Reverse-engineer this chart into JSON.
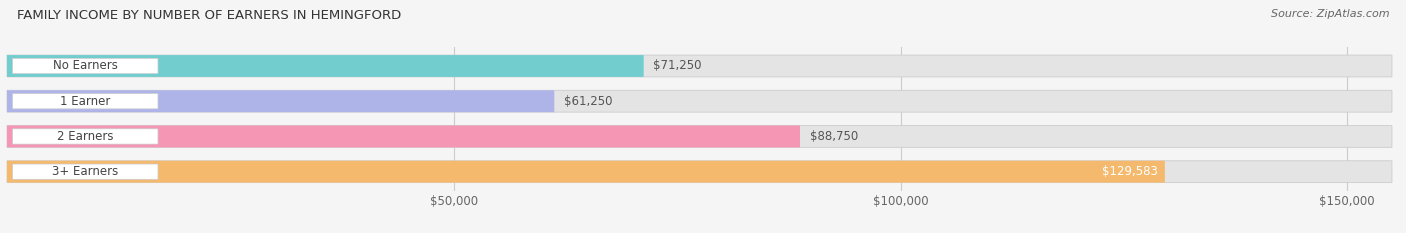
{
  "title": "FAMILY INCOME BY NUMBER OF EARNERS IN HEMINGFORD",
  "source": "Source: ZipAtlas.com",
  "categories": [
    "No Earners",
    "1 Earner",
    "2 Earners",
    "3+ Earners"
  ],
  "values": [
    71250,
    61250,
    88750,
    129583
  ],
  "bar_colors": [
    "#72cece",
    "#aeb4e8",
    "#f496b4",
    "#f5b96e"
  ],
  "bar_labels": [
    "$71,250",
    "$61,250",
    "$88,750",
    "$129,583"
  ],
  "label_inside": [
    false,
    false,
    false,
    true
  ],
  "x_min": 0,
  "x_max": 155000,
  "x_ticks": [
    50000,
    100000,
    150000
  ],
  "x_tick_labels": [
    "$50,000",
    "$100,000",
    "$150,000"
  ],
  "bg_color": "#f5f5f5",
  "bar_bg_color": "#e4e4e4",
  "bar_height": 0.62,
  "title_fontsize": 9.5,
  "label_fontsize": 8.5,
  "tick_fontsize": 8.5,
  "source_fontsize": 8,
  "pill_text_color": "#444444",
  "value_text_color": "#555555",
  "value_text_color_inside": "#ffffff"
}
